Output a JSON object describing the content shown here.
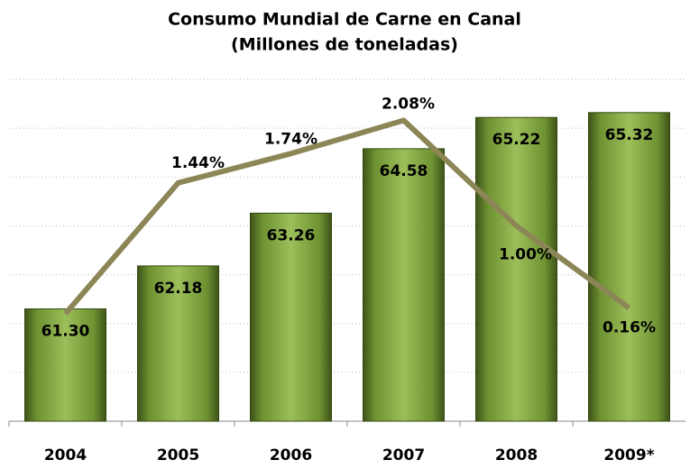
{
  "chart_data": {
    "type": "bar",
    "title": "Consumo Mundial de Carne en Canal",
    "subtitle": "(Millones de toneladas)",
    "categories": [
      "2004",
      "2005",
      "2006",
      "2007",
      "2008",
      "2009*"
    ],
    "series": [
      {
        "type": "bar",
        "color": "#7fa03e",
        "values": [
          61.3,
          62.18,
          63.26,
          64.58,
          65.22,
          65.32
        ],
        "value_labels": [
          "61.30",
          "62.18",
          "63.26",
          "64.58",
          "65.22",
          "65.32"
        ]
      },
      {
        "type": "line",
        "axis": "y2",
        "color": "#8c8657",
        "values": [
          0.1,
          1.44,
          1.74,
          2.08,
          1.0,
          0.16
        ],
        "value_labels": [
          null,
          "1.44%",
          "1.74%",
          "2.08%",
          "1.00%",
          "0.16%"
        ]
      }
    ],
    "ylim": [
      59,
      66
    ],
    "yticks": [
      59,
      60,
      61,
      62,
      63,
      64,
      65,
      66
    ],
    "y2lim": [
      -1,
      2.5
    ],
    "grid": true
  }
}
